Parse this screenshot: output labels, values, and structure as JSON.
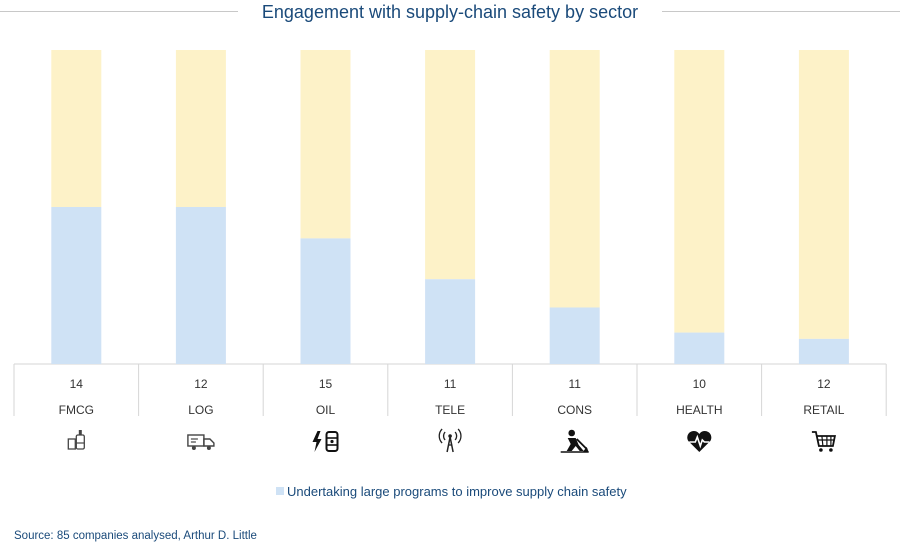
{
  "chart_data": {
    "type": "bar",
    "title": "Engagement with supply-chain safety by sector",
    "categories": [
      "FMCG",
      "LOG",
      "OIL",
      "TELE",
      "CONS",
      "HEALTH",
      "RETAIL"
    ],
    "counts": [
      "14",
      "12",
      "15",
      "11",
      "11",
      "10",
      "12"
    ],
    "icons": [
      "bottles-icon",
      "delivery-truck-icon",
      "energy-barrel-icon",
      "radio-tower-icon",
      "construction-worker-icon",
      "heart-pulse-icon",
      "shopping-cart-icon"
    ],
    "series": [
      {
        "name": "Undertaking large programs to improve supply chain safety",
        "values": [
          50,
          50,
          40,
          27,
          18,
          10,
          8
        ]
      }
    ],
    "ylim": [
      0,
      100
    ],
    "colors": {
      "program": "#cfe2f5",
      "remainder": "#fdf2c8",
      "title": "#1a4a7a"
    },
    "legend_position": "bottom"
  },
  "legend": {
    "label": "Undertaking large programs to improve supply chain safety"
  },
  "source": "Source: 85 companies analysed, Arthur D. Little"
}
